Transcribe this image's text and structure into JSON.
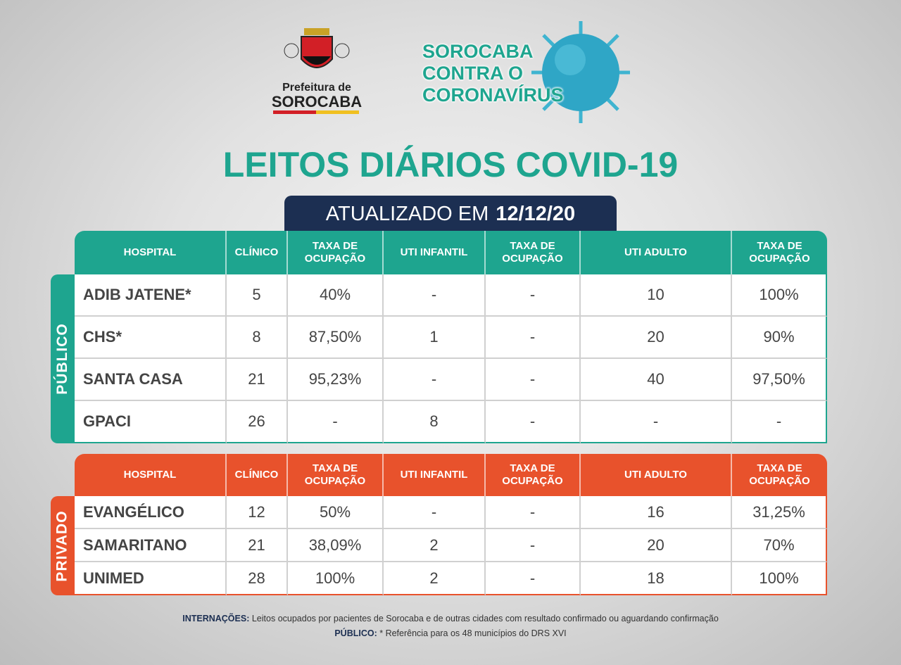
{
  "header": {
    "logo_line1": "Prefeitura de",
    "logo_line2": "SOROCABA",
    "campaign": [
      "SOROCABA",
      "CONTRA O",
      "CORONAVÍRUS"
    ]
  },
  "title": "LEITOS DIÁRIOS COVID-19",
  "updated": {
    "prefix": "ATUALIZADO EM",
    "date": "12/12/20"
  },
  "tables": [
    {
      "label": "PÚBLICO",
      "columns": [
        "HOSPITAL",
        "CLÍNICO",
        "TAXA DE OCUPAÇÃO",
        "UTI INFANTIL",
        "TAXA DE OCUPAÇÃO",
        "UTI ADULTO",
        "TAXA DE OCUPAÇÃO"
      ],
      "rows": [
        [
          "ADIB JATENE*",
          "5",
          "40%",
          "-",
          "-",
          "10",
          "100%"
        ],
        [
          "CHS*",
          "8",
          "87,50%",
          "1",
          "-",
          "20",
          "90%"
        ],
        [
          "SANTA CASA",
          "21",
          "95,23%",
          "-",
          "-",
          "40",
          "97,50%"
        ],
        [
          "GPACI",
          "26",
          "-",
          "8",
          "-",
          "-",
          "-"
        ]
      ]
    },
    {
      "label": "PRIVADO",
      "columns": [
        "HOSPITAL",
        "CLÍNICO",
        "TAXA DE OCUPAÇÃO",
        "UTI INFANTIL",
        "TAXA DE OCUPAÇÃO",
        "UTI ADULTO",
        "TAXA DE OCUPAÇÃO"
      ],
      "rows": [
        [
          "EVANGÉLICO",
          "12",
          "50%",
          "-",
          "-",
          "16",
          "31,25%"
        ],
        [
          "SAMARITANO",
          "21",
          "38,09%",
          "2",
          "-",
          "20",
          "70%"
        ],
        [
          "UNIMED",
          "28",
          "100%",
          "2",
          "-",
          "18",
          "100%"
        ]
      ]
    }
  ],
  "footer": [
    {
      "label": "INTERNAÇÕES:",
      "text": "Leitos ocupados por pacientes de Sorocaba e de outras cidades com resultado confirmado ou aguardando confirmação"
    },
    {
      "label": "PÚBLICO:",
      "text": "* Referência para os 48 municípios do DRS XVI"
    }
  ]
}
